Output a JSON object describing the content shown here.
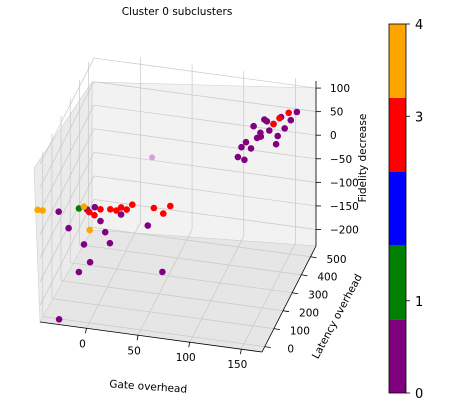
{
  "chart_data": {
    "type": "scatter",
    "projection": "3d",
    "title": "Cluster 0 subclusters",
    "xlabel": "Gate overhead",
    "ylabel": "Latency overhead",
    "zlabel": "Fidelity decrease",
    "xticks": [
      "0",
      "50",
      "100",
      "150"
    ],
    "yticks": [
      "0",
      "100",
      "200",
      "300",
      "400",
      "500"
    ],
    "zticks": [
      "100",
      "50",
      "0",
      "−50",
      "−100",
      "−150",
      "−200"
    ],
    "xlim": [
      -45,
      170
    ],
    "ylim": [
      -30,
      560
    ],
    "zlim": [
      -235,
      115
    ],
    "grid": true,
    "colorbar": {
      "ticks": [
        "0",
        "1",
        "3",
        "4"
      ],
      "tick_values": [
        0,
        1,
        3,
        4
      ],
      "range": [
        0,
        4
      ],
      "bands": [
        {
          "from": 0.0,
          "to": 0.8,
          "color": "#800080"
        },
        {
          "from": 0.8,
          "to": 1.6,
          "color": "#008000"
        },
        {
          "from": 1.6,
          "to": 2.4,
          "color": "#0000ff"
        },
        {
          "from": 2.4,
          "to": 3.2,
          "color": "#ff0000"
        },
        {
          "from": 3.2,
          "to": 4.0,
          "color": "#ffa500"
        }
      ]
    },
    "series": [
      {
        "label_value": 0,
        "color": "#800080",
        "points": [
          [
            -2,
            0,
            5
          ],
          [
            5,
            5,
            10
          ],
          [
            10,
            10,
            -20
          ],
          [
            15,
            5,
            -40
          ],
          [
            -5,
            0,
            -70
          ],
          [
            0,
            10,
            -110
          ],
          [
            -10,
            0,
            -130
          ],
          [
            -20,
            0,
            -40
          ],
          [
            -30,
            5,
            -10
          ],
          [
            20,
            0,
            -60
          ],
          [
            30,
            10,
            0
          ],
          [
            55,
            20,
            -20
          ],
          [
            70,
            10,
            -110
          ],
          [
            105,
            440,
            -20
          ],
          [
            110,
            455,
            -30
          ],
          [
            115,
            470,
            -10
          ],
          [
            120,
            480,
            10
          ],
          [
            125,
            460,
            30
          ],
          [
            130,
            475,
            50
          ],
          [
            135,
            490,
            40
          ],
          [
            140,
            480,
            20
          ],
          [
            145,
            500,
            30
          ],
          [
            150,
            510,
            45
          ],
          [
            128,
            470,
            55
          ],
          [
            118,
            465,
            40
          ],
          [
            138,
            485,
            0
          ],
          [
            112,
            450,
            10
          ],
          [
            108,
            445,
            0
          ],
          [
            125,
            465,
            20
          ],
          [
            132,
            478,
            30
          ],
          [
            142,
            495,
            55
          ],
          [
            -30,
            10,
            -240
          ],
          [
            155,
            520,
            60
          ]
        ]
      },
      {
        "label_value": 1,
        "color": "#008000",
        "points": [
          [
            -10,
            0,
            5
          ]
        ]
      },
      {
        "label_value": 3,
        "color": "#ff0000",
        "points": [
          [
            0,
            0,
            0
          ],
          [
            5,
            0,
            -5
          ],
          [
            10,
            10,
            5
          ],
          [
            20,
            5,
            10
          ],
          [
            25,
            15,
            5
          ],
          [
            30,
            10,
            15
          ],
          [
            35,
            15,
            10
          ],
          [
            40,
            20,
            20
          ],
          [
            60,
            30,
            15
          ],
          [
            70,
            20,
            10
          ],
          [
            75,
            40,
            20
          ],
          [
            135,
            490,
            40
          ],
          [
            140,
            500,
            50
          ],
          [
            148,
            510,
            60
          ]
        ]
      },
      {
        "label_value": 4,
        "color": "#ffa500",
        "points": [
          [
            -50,
            0,
            -10
          ],
          [
            -45,
            0,
            -10
          ],
          [
            0,
            5,
            -40
          ],
          [
            -5,
            0,
            10
          ]
        ]
      },
      {
        "label_value": 0,
        "color": "#cc66cc",
        "outlier": true,
        "points": [
          [
            60,
            10,
            130
          ]
        ]
      }
    ]
  }
}
